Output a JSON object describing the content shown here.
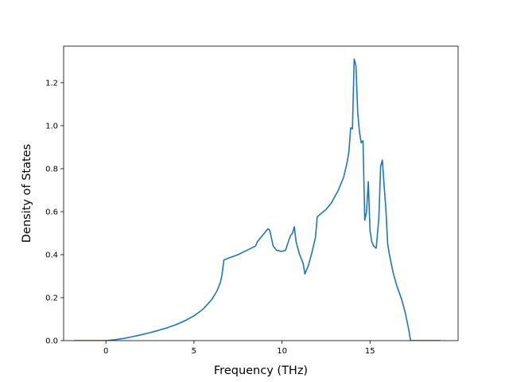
{
  "chart_data": {
    "type": "line",
    "title": "",
    "xlabel": "Frequency (THz)",
    "ylabel": "Density of States",
    "xlim": [
      -2.4,
      20.0
    ],
    "ylim": [
      0.0,
      1.37
    ],
    "xticks": [
      0,
      5,
      10,
      15
    ],
    "yticks": [
      0.0,
      0.2,
      0.4,
      0.6,
      0.8,
      1.0,
      1.2
    ],
    "grid": false,
    "legend": "none",
    "series": [
      {
        "color": "#1f77b4",
        "x": [
          -1.8,
          -1.0,
          0.0,
          0.5,
          1.0,
          1.5,
          2.0,
          2.5,
          3.0,
          3.5,
          4.0,
          4.5,
          5.0,
          5.5,
          6.0,
          6.3,
          6.5,
          6.6,
          6.7,
          7.0,
          7.5,
          8.0,
          8.5,
          8.6,
          9.0,
          9.1,
          9.2,
          9.3,
          9.5,
          9.7,
          10.0,
          10.2,
          10.4,
          10.5,
          10.6,
          10.7,
          10.8,
          11.0,
          11.1,
          11.2,
          11.3,
          11.5,
          11.7,
          11.9,
          12.0,
          12.2,
          12.5,
          12.8,
          13.0,
          13.2,
          13.5,
          13.7,
          13.8,
          13.9,
          14.0,
          14.1,
          14.2,
          14.3,
          14.4,
          14.5,
          14.6,
          14.7,
          14.8,
          14.9,
          15.0,
          15.1,
          15.2,
          15.35,
          15.5,
          15.6,
          15.7,
          15.8,
          15.9,
          16.0,
          16.1,
          16.3,
          16.5,
          16.8,
          17.0,
          17.2,
          17.3,
          17.5,
          18.0,
          19.0
        ],
        "y": [
          0.0,
          0.0,
          0.0,
          0.004,
          0.01,
          0.018,
          0.027,
          0.037,
          0.048,
          0.06,
          0.075,
          0.093,
          0.115,
          0.145,
          0.19,
          0.23,
          0.27,
          0.31,
          0.375,
          0.385,
          0.4,
          0.42,
          0.44,
          0.46,
          0.5,
          0.51,
          0.52,
          0.515,
          0.44,
          0.42,
          0.415,
          0.42,
          0.47,
          0.49,
          0.5,
          0.53,
          0.46,
          0.4,
          0.38,
          0.36,
          0.31,
          0.35,
          0.41,
          0.48,
          0.575,
          0.59,
          0.61,
          0.64,
          0.67,
          0.7,
          0.76,
          0.83,
          0.88,
          0.99,
          0.985,
          1.31,
          1.28,
          1.06,
          0.97,
          0.92,
          0.93,
          0.56,
          0.6,
          0.74,
          0.51,
          0.46,
          0.44,
          0.43,
          0.57,
          0.81,
          0.84,
          0.72,
          0.61,
          0.45,
          0.4,
          0.32,
          0.26,
          0.19,
          0.13,
          0.05,
          0.0,
          0.0,
          0.0,
          0.0
        ]
      }
    ]
  }
}
